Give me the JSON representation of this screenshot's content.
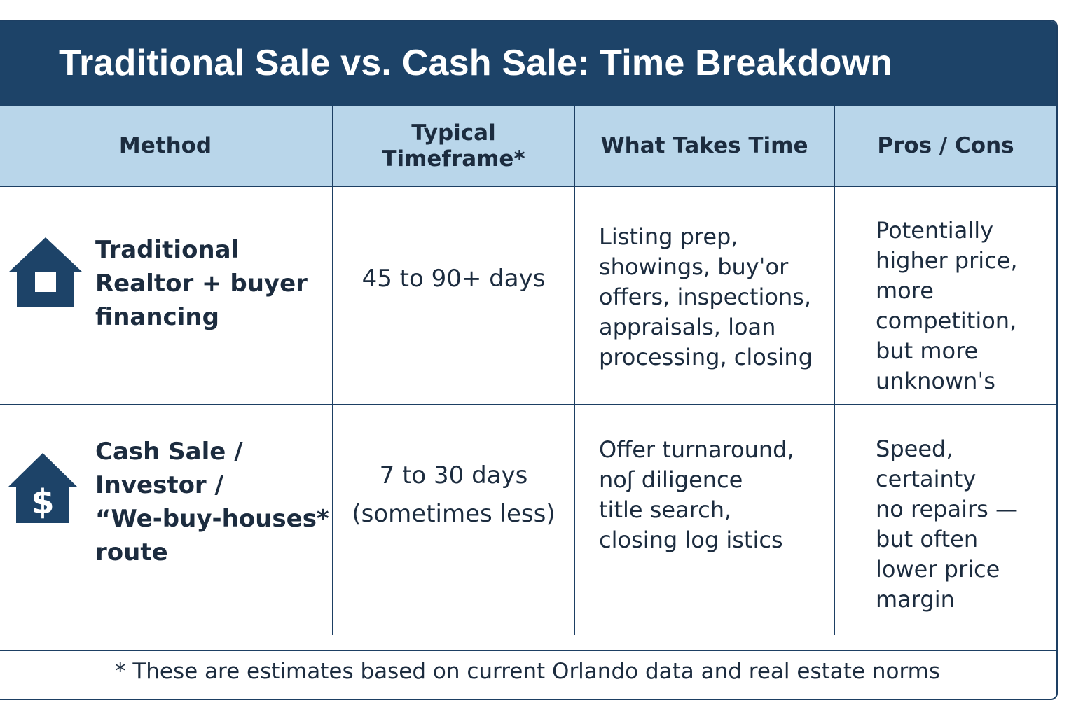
{
  "title": "Traditional Sale vs. Cash Sale: Time Breakdown",
  "columns": {
    "method": "Method",
    "timeframe": "Typical\nTimeframe*",
    "what_takes_time": "What Takes Time",
    "pros_cons": "Pros / Cons"
  },
  "rows": [
    {
      "icon": "house-icon",
      "method": "Traditional\nRealtor + buyer\nfinancing",
      "timeframe": "45 to 90+ days",
      "what_takes_time": "Listing prep,\nshowings, buyˈor\noffers, inspections,\nappraisals, loan\nprocessing, closing",
      "pros_cons": "Potentially\nhigher price,\nmore\ncompetition,\nbut more\nunknownˈs"
    },
    {
      "icon": "dollar-house-icon",
      "method": "Cash Sale /\nInvestor /\n“We-buy-houses*\nroute",
      "timeframe": "7 to 30 days\n(sometimes less)",
      "what_takes_time": "Offer turnaround,\nnoʃ diligence\ntitle search,\nclosing log istics",
      "pros_cons": "Speed,\ncertainty\nno repairs —\nbut often\nlower price\nmargin"
    }
  ],
  "footnote": "* These are estimates based on current Orlando data and real estate norms",
  "colors": {
    "header_bar": "#1d4368",
    "column_header_bg": "#b9d6ea",
    "border": "#1d3f63",
    "icon": "#1d4368",
    "text": "#1c2c3f"
  }
}
